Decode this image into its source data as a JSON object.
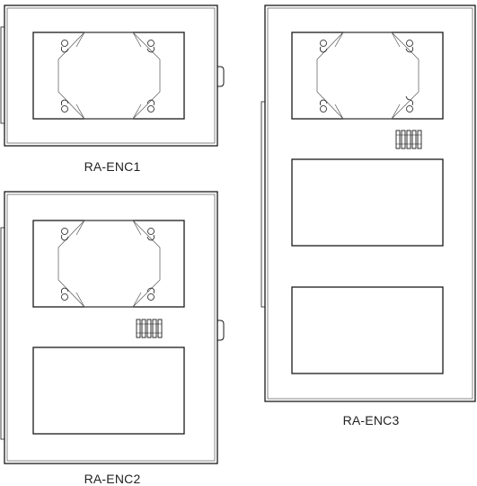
{
  "enclosures": [
    {
      "id": "enc1",
      "label": "RA-ENC1",
      "terminal_blocks": false,
      "blank_panels": 0
    },
    {
      "id": "enc2",
      "label": "RA-ENC2",
      "terminal_blocks": true,
      "blank_panels": 1
    },
    {
      "id": "enc3",
      "label": "RA-ENC3",
      "terminal_blocks": true,
      "blank_panels": 2
    }
  ],
  "colors": {
    "stroke": "#1a1a1a",
    "inner_stroke": "#555555",
    "background": "#ffffff"
  }
}
